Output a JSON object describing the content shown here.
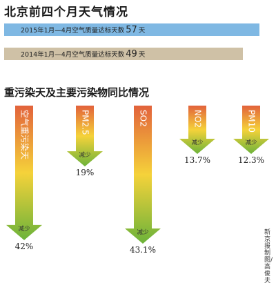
{
  "title": "北京前四个月天气情况",
  "stats": [
    {
      "label_before": "2015年1月—4月空气质量达标天数",
      "value": "57",
      "unit": "天"
    },
    {
      "label_before": "2014年1月—4月空气质量达标天数",
      "value": "49",
      "unit": "天"
    }
  ],
  "subtitle": "重污染天及主要污染物同比情况",
  "credit": "新京报制图/高俊夫",
  "colors": {
    "bar_2015": "#7fb8e3",
    "bar_2014": "#cfc1a6",
    "arrow_top": "#e2623b",
    "arrow_mid": "#f5d23a",
    "arrow_bottom": "#6cb33a"
  },
  "chart_data": {
    "type": "bar",
    "categories": [
      "空气重污染天",
      "PM2.5",
      "SO2",
      "NO2",
      "PM10"
    ],
    "series": [
      {
        "values": [
          42,
          19,
          43.1,
          13.7,
          12.3
        ]
      }
    ],
    "value_labels": [
      "42%",
      "19%",
      "43.1%",
      "13.7%",
      "12.3%"
    ],
    "direction_label": "减少",
    "unit": "%"
  }
}
